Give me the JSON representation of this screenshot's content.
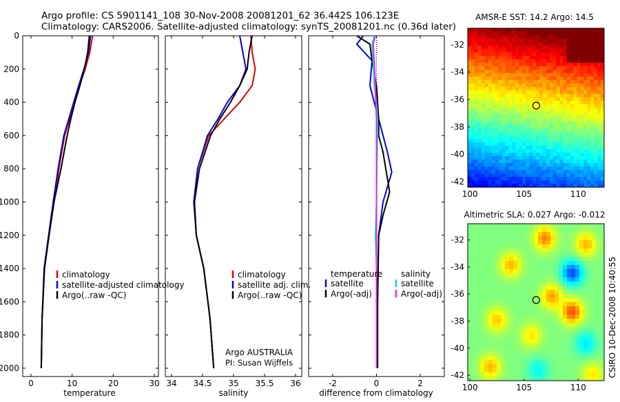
{
  "header": {
    "line1": "Argo profile: CS 5901141_108 30-Nov-2008 20081201_62 36.442S 106.123E",
    "line2": "Climatology: CARS2006. Satellite-adjusted climatology: synTS_20081201.nc (0.36d later)"
  },
  "side_label": "CSIRO 10-Dec-2008 10:40:55",
  "agency": {
    "line1": "Argo AUSTRALIA",
    "line2": "PI: Susan Wijffels"
  },
  "colors": {
    "climatology": "#e00000",
    "satellite": "#0000dd",
    "argo": "#000000",
    "sal_satellite": "#00e0e0",
    "sal_argo": "#ee22ee"
  },
  "legends": {
    "temperature": [
      "climatology",
      "satellite-adjusted climatology",
      "Argo(..raw -QC)"
    ],
    "salinity": [
      "climatology",
      "satellite adj. clim.",
      "Argo(..raw -QC)"
    ],
    "diff_temp_title": "temperature",
    "diff_temp": [
      "satellite",
      "Argo(-adj)"
    ],
    "diff_sal_title": "salinity",
    "diff_sal": [
      "satellite",
      "Argo(-adj)"
    ]
  },
  "maps": {
    "sst_title": "AMSR-E SST: 14.2 Argo: 14.5",
    "sla_title": "Altimetric SLA: 0.027 Argo: -0.012",
    "xticks": [
      100,
      105,
      110
    ],
    "yticks": [
      -32,
      -34,
      -36,
      -38,
      -40,
      -42
    ],
    "xlim": [
      99.8,
      112.4
    ],
    "ylim": [
      -42.4,
      -30.8
    ],
    "marker": {
      "lon": 106.123,
      "lat": -36.442
    }
  },
  "chart_data": [
    {
      "type": "line",
      "xlabel": "temperature",
      "xlim": [
        -2,
        31
      ],
      "ylim": [
        2050,
        0
      ],
      "xticks": [
        0,
        10,
        20,
        30
      ],
      "yticks": [
        0,
        200,
        400,
        600,
        800,
        1000,
        1200,
        1400,
        1600,
        1800,
        2000
      ],
      "series": [
        {
          "name": "climatology",
          "color": "climatology",
          "x": [
            15.0,
            14.3,
            13.2,
            11.8,
            10.6,
            9.4,
            8.2,
            6.8,
            5.6,
            4.4,
            3.3,
            2.7,
            2.5
          ],
          "y": [
            0,
            100,
            200,
            300,
            400,
            500,
            600,
            800,
            1000,
            1200,
            1400,
            1700,
            2000
          ]
        },
        {
          "name": "satellite-adjusted climatology",
          "color": "satellite",
          "x": [
            14.5,
            14.0,
            12.9,
            11.6,
            10.4,
            9.2,
            8.0,
            6.6,
            5.4,
            4.3,
            3.2,
            2.7,
            2.5
          ],
          "y": [
            0,
            100,
            200,
            300,
            400,
            500,
            600,
            800,
            1000,
            1200,
            1400,
            1700,
            2000
          ]
        },
        {
          "name": "Argo(..raw -QC)",
          "color": "argo",
          "x": [
            14.2,
            13.8,
            13.0,
            11.9,
            10.7,
            9.7,
            8.8,
            7.3,
            5.6,
            4.4,
            3.3,
            2.7,
            2.5
          ],
          "y": [
            0,
            100,
            200,
            300,
            400,
            500,
            600,
            800,
            1000,
            1200,
            1400,
            1700,
            2000
          ]
        }
      ]
    },
    {
      "type": "line",
      "xlabel": "salinity",
      "xlim": [
        33.9,
        36.1
      ],
      "ylim": [
        2050,
        0
      ],
      "xticks": [
        34,
        34.5,
        35,
        35.5,
        36
      ],
      "series": [
        {
          "name": "climatology",
          "color": "climatology",
          "x": [
            35.28,
            35.3,
            35.35,
            35.3,
            35.1,
            34.85,
            34.6,
            34.42,
            34.36,
            34.4,
            34.52,
            34.62,
            34.68
          ],
          "y": [
            0,
            100,
            200,
            300,
            400,
            500,
            600,
            800,
            1000,
            1200,
            1400,
            1700,
            2000
          ]
        },
        {
          "name": "satellite adj. clim.",
          "color": "satellite",
          "x": [
            35.1,
            35.15,
            35.2,
            35.1,
            34.9,
            34.75,
            34.58,
            34.42,
            34.36,
            34.4,
            34.52,
            34.62,
            34.68
          ],
          "y": [
            0,
            100,
            200,
            300,
            400,
            500,
            600,
            800,
            1000,
            1200,
            1400,
            1700,
            2000
          ]
        },
        {
          "name": "Argo(..raw -QC)",
          "color": "argo",
          "x": [
            35.3,
            35.25,
            35.22,
            35.1,
            34.95,
            34.78,
            34.63,
            34.45,
            34.37,
            34.4,
            34.52,
            34.62,
            34.68
          ],
          "y": [
            0,
            100,
            200,
            300,
            400,
            500,
            600,
            800,
            1000,
            1200,
            1400,
            1700,
            2000
          ]
        }
      ]
    },
    {
      "type": "line",
      "xlabel": "difference from climatology",
      "xlim": [
        -3.1,
        3.1
      ],
      "ylim": [
        2050,
        0
      ],
      "xticks": [
        -2,
        0,
        2
      ],
      "series": [
        {
          "name": "temperature satellite",
          "color": "satellite",
          "x": [
            -0.6,
            -0.9,
            -0.2,
            -0.3,
            -0.1,
            0.1,
            0.3,
            0.5,
            0.7,
            0.3,
            0.1,
            0.05,
            0.05
          ],
          "y": [
            0,
            50,
            150,
            300,
            400,
            500,
            600,
            700,
            820,
            1000,
            1200,
            1600,
            2000
          ]
        },
        {
          "name": "temperature Argo(-adj)",
          "color": "argo",
          "x": [
            -0.9,
            -0.3,
            -0.2,
            0.0,
            0.05,
            0.1,
            0.1,
            0.3,
            0.6,
            0.3,
            0.1,
            0.05,
            0.05
          ],
          "y": [
            0,
            50,
            150,
            300,
            400,
            500,
            600,
            700,
            940,
            1080,
            1200,
            1600,
            2000
          ]
        },
        {
          "name": "salinity satellite",
          "color": "sal_satellite",
          "x": [
            -0.1,
            -0.2,
            -0.15,
            -0.1,
            0.0,
            0.05,
            0.05,
            0.02,
            0.0,
            -0.05,
            0.0,
            0.0,
            0.0
          ],
          "y": [
            0,
            50,
            150,
            300,
            400,
            500,
            600,
            800,
            1000,
            1200,
            1400,
            1700,
            2000
          ]
        },
        {
          "name": "salinity Argo(-adj)",
          "color": "sal_argo",
          "x": [
            -0.05,
            -0.15,
            -0.1,
            -0.05,
            -0.03,
            0.0,
            0.0,
            0.0,
            0.0,
            0.0,
            0.0,
            0.0,
            0.0
          ],
          "y": [
            0,
            50,
            150,
            300,
            400,
            500,
            600,
            800,
            1000,
            1200,
            1400,
            1700,
            2000
          ]
        }
      ]
    }
  ]
}
